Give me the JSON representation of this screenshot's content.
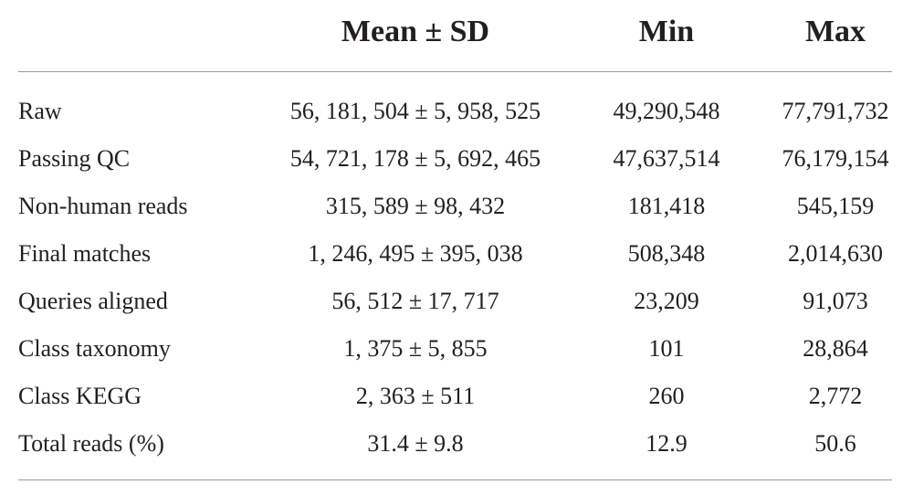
{
  "header": {
    "col_label": "",
    "col_mean": "Mean ± SD",
    "col_min": "Min",
    "col_max": "Max"
  },
  "rows": [
    {
      "label": "Raw",
      "mean_sd": "56, 181, 504 ± 5, 958, 525",
      "min": "49,290,548",
      "max": "77,791,732"
    },
    {
      "label": "Passing QC",
      "mean_sd": "54, 721, 178 ± 5, 692, 465",
      "min": "47,637,514",
      "max": "76,179,154"
    },
    {
      "label": "Non-human reads",
      "mean_sd": "315, 589 ± 98, 432",
      "min": "181,418",
      "max": "545,159"
    },
    {
      "label": "Final matches",
      "mean_sd": "1, 246, 495 ± 395, 038",
      "min": "508,348",
      "max": "2,014,630"
    },
    {
      "label": "Queries aligned",
      "mean_sd": "56, 512 ± 17, 717",
      "min": "23,209",
      "max": "91,073"
    },
    {
      "label": "Class taxonomy",
      "mean_sd": "1, 375 ± 5, 855",
      "min": "101",
      "max": "28,864"
    },
    {
      "label": "Class KEGG",
      "mean_sd": "2, 363 ± 511",
      "min": "260",
      "max": "2,772"
    },
    {
      "label": "Total reads (%)",
      "mean_sd": "31.4 ± 9.8",
      "min": "12.9",
      "max": "50.6"
    }
  ]
}
